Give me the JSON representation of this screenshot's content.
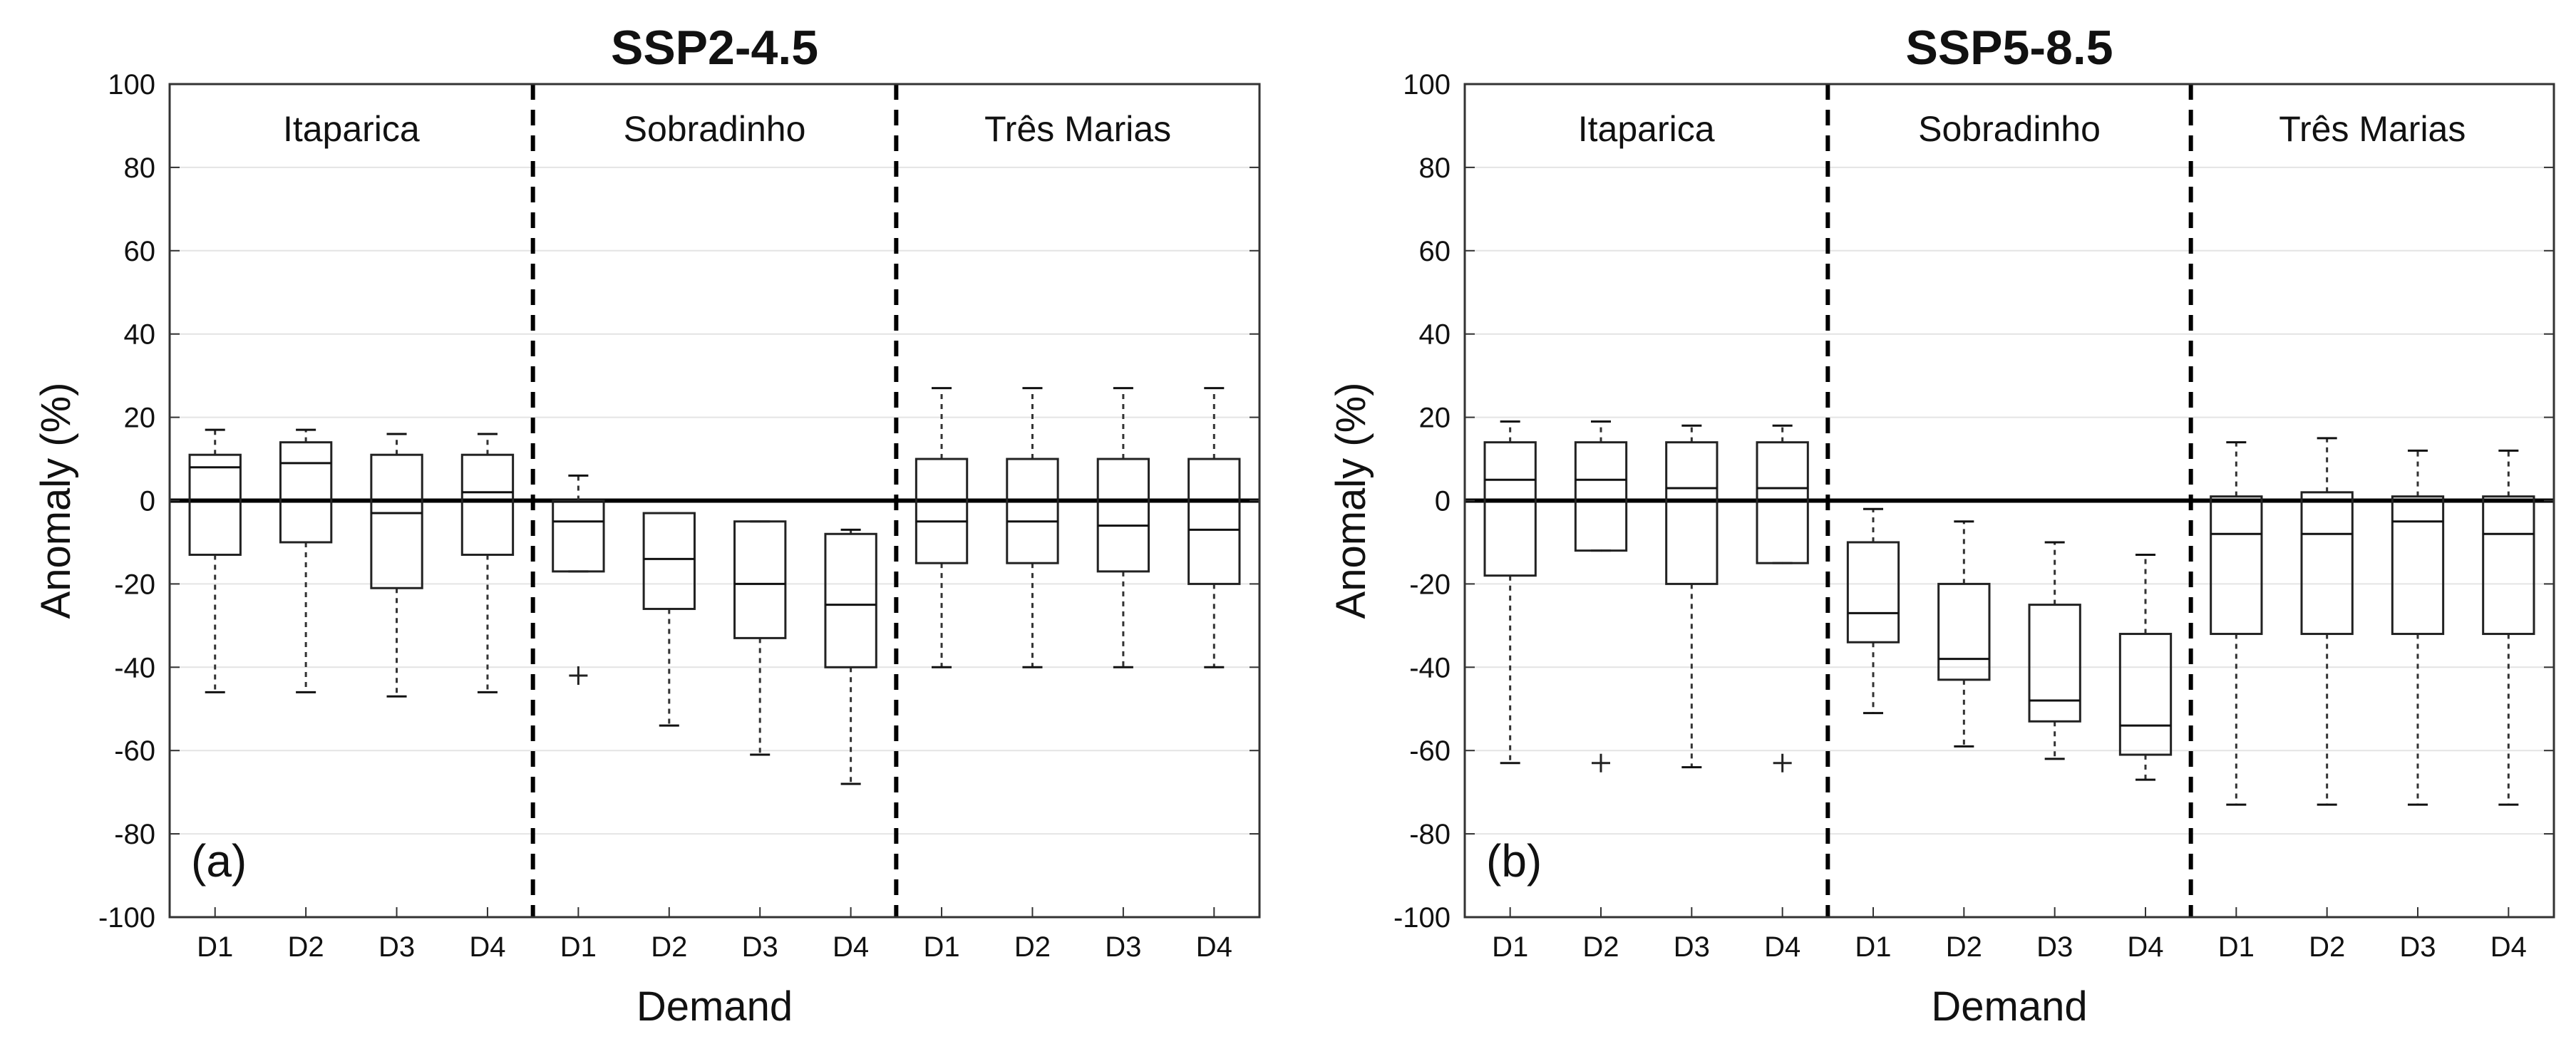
{
  "chart_data": [
    {
      "type": "box",
      "panel_label": "(a)",
      "title": "SSP2-4.5",
      "xlabel": "Demand",
      "ylabel": "Anomaly (%)",
      "ylim": [
        -100,
        100
      ],
      "yticks": [
        -100,
        -80,
        -60,
        -40,
        -20,
        0,
        20,
        40,
        60,
        80,
        100
      ],
      "grid": true,
      "groups": [
        {
          "name": "Itaparica",
          "boxes": [
            {
              "label": "D1",
              "min": -46,
              "q1": -13,
              "median": 8,
              "q3": 11,
              "max": 17,
              "outliers": []
            },
            {
              "label": "D2",
              "min": -46,
              "q1": -10,
              "median": 9,
              "q3": 14,
              "max": 17,
              "outliers": []
            },
            {
              "label": "D3",
              "min": -47,
              "q1": -21,
              "median": -3,
              "q3": 11,
              "max": 16,
              "outliers": []
            },
            {
              "label": "D4",
              "min": -46,
              "q1": -13,
              "median": 2,
              "q3": 11,
              "max": 16,
              "outliers": []
            }
          ]
        },
        {
          "name": "Sobradinho",
          "boxes": [
            {
              "label": "D1",
              "min": -17,
              "q1": -17,
              "median": -5,
              "q3": 0,
              "max": 6,
              "outliers": [
                -42
              ]
            },
            {
              "label": "D2",
              "min": -54,
              "q1": -26,
              "median": -14,
              "q3": -3,
              "max": -3,
              "outliers": []
            },
            {
              "label": "D3",
              "min": -61,
              "q1": -33,
              "median": -20,
              "q3": -5,
              "max": -5,
              "outliers": []
            },
            {
              "label": "D4",
              "min": -68,
              "q1": -40,
              "median": -25,
              "q3": -8,
              "max": -7,
              "outliers": []
            }
          ]
        },
        {
          "name": "Três Marias",
          "boxes": [
            {
              "label": "D1",
              "min": -40,
              "q1": -15,
              "median": -5,
              "q3": 10,
              "max": 27,
              "outliers": []
            },
            {
              "label": "D2",
              "min": -40,
              "q1": -15,
              "median": -5,
              "q3": 10,
              "max": 27,
              "outliers": []
            },
            {
              "label": "D3",
              "min": -40,
              "q1": -17,
              "median": -6,
              "q3": 10,
              "max": 27,
              "outliers": []
            },
            {
              "label": "D4",
              "min": -40,
              "q1": -20,
              "median": -7,
              "q3": 10,
              "max": 27,
              "outliers": []
            }
          ]
        }
      ]
    },
    {
      "type": "box",
      "panel_label": "(b)",
      "title": "SSP5-8.5",
      "xlabel": "Demand",
      "ylabel": "Anomaly (%)",
      "ylim": [
        -100,
        100
      ],
      "yticks": [
        -100,
        -80,
        -60,
        -40,
        -20,
        0,
        20,
        40,
        60,
        80,
        100
      ],
      "grid": true,
      "groups": [
        {
          "name": "Itaparica",
          "boxes": [
            {
              "label": "D1",
              "min": -63,
              "q1": -18,
              "median": 5,
              "q3": 14,
              "max": 19,
              "outliers": []
            },
            {
              "label": "D2",
              "min": -12,
              "q1": -12,
              "median": 5,
              "q3": 14,
              "max": 19,
              "outliers": [
                -63
              ]
            },
            {
              "label": "D3",
              "min": -64,
              "q1": -20,
              "median": 3,
              "q3": 14,
              "max": 18,
              "outliers": []
            },
            {
              "label": "D4",
              "min": -15,
              "q1": -15,
              "median": 3,
              "q3": 14,
              "max": 18,
              "outliers": [
                -63
              ]
            }
          ]
        },
        {
          "name": "Sobradinho",
          "boxes": [
            {
              "label": "D1",
              "min": -51,
              "q1": -34,
              "median": -27,
              "q3": -10,
              "max": -2,
              "outliers": []
            },
            {
              "label": "D2",
              "min": -59,
              "q1": -43,
              "median": -38,
              "q3": -20,
              "max": -5,
              "outliers": []
            },
            {
              "label": "D3",
              "min": -62,
              "q1": -53,
              "median": -48,
              "q3": -25,
              "max": -10,
              "outliers": []
            },
            {
              "label": "D4",
              "min": -67,
              "q1": -61,
              "median": -54,
              "q3": -32,
              "max": -13,
              "outliers": []
            }
          ]
        },
        {
          "name": "Três Marias",
          "boxes": [
            {
              "label": "D1",
              "min": -73,
              "q1": -32,
              "median": -8,
              "q3": 1,
              "max": 14,
              "outliers": []
            },
            {
              "label": "D2",
              "min": -73,
              "q1": -32,
              "median": -8,
              "q3": 2,
              "max": 15,
              "outliers": []
            },
            {
              "label": "D3",
              "min": -73,
              "q1": -32,
              "median": -5,
              "q3": 1,
              "max": 12,
              "outliers": []
            },
            {
              "label": "D4",
              "min": -73,
              "q1": -32,
              "median": -8,
              "q3": 1,
              "max": 12,
              "outliers": []
            }
          ]
        }
      ]
    }
  ]
}
